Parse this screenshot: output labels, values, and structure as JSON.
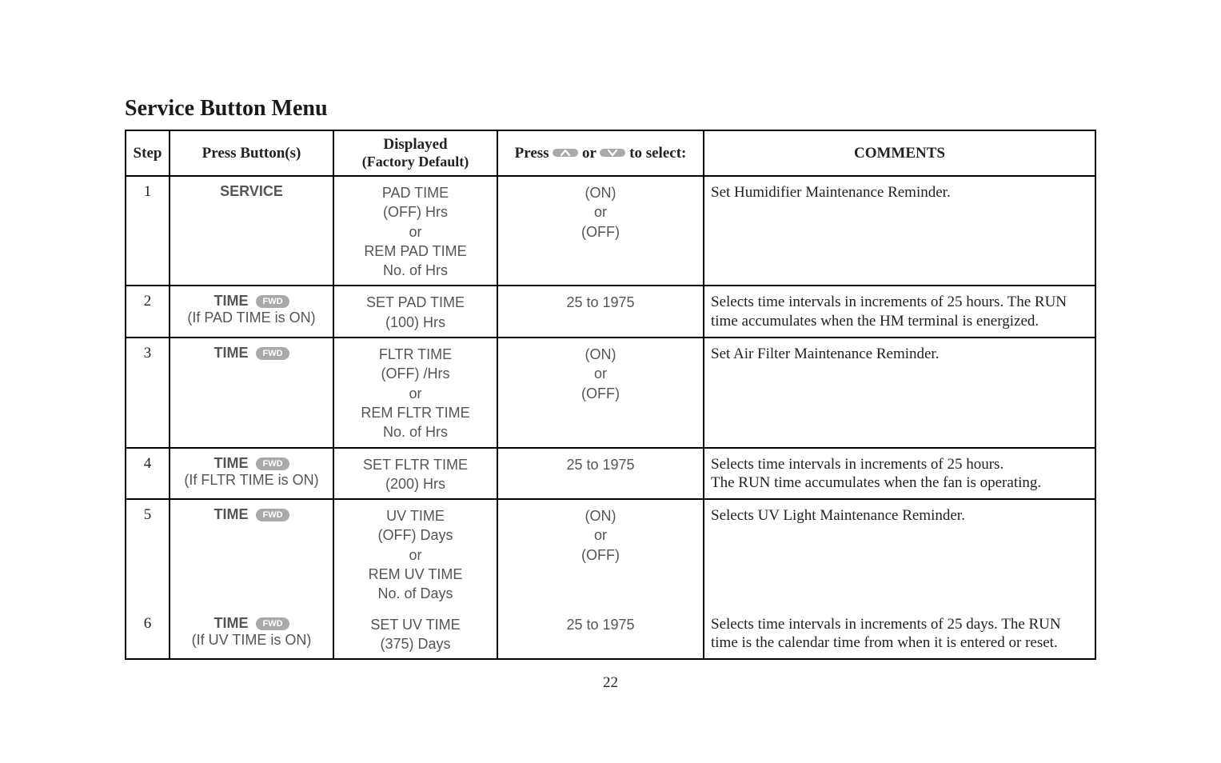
{
  "title": "Service Button Menu",
  "headers": {
    "step": "Step",
    "buttons": "Press Button(s)",
    "displayed": "Displayed",
    "displayed_sub": "(Factory Default)",
    "press_prefix": "Press",
    "press_mid": "or",
    "press_suffix": "to select:",
    "comments": "COMMENTS"
  },
  "fwd_label": "FWD",
  "rows": [
    {
      "step": "1",
      "button_main": "SERVICE",
      "button_sub": "",
      "has_fwd": false,
      "displayed": "PAD TIME\n(OFF) Hrs\nor\nREM PAD TIME\nNo. of Hrs",
      "press": "(ON)\nor\n(OFF)",
      "comments": "Set Humidifier Maintenance Reminder."
    },
    {
      "step": "2",
      "button_main": "TIME",
      "button_sub": "(If PAD TIME is ON)",
      "has_fwd": true,
      "displayed": "SET PAD TIME\n(100) Hrs",
      "press": "25 to 1975",
      "comments": "Selects time intervals in increments of 25 hours. The RUN time accumulates when the HM terminal  is energized."
    },
    {
      "step": "3",
      "button_main": "TIME",
      "button_sub": "",
      "has_fwd": true,
      "displayed": "FLTR TIME\n(OFF) /Hrs\nor\nREM FLTR TIME\nNo. of Hrs",
      "press": "(ON)\nor\n(OFF)",
      "comments": "Set Air Filter Maintenance Reminder."
    },
    {
      "step": "4",
      "button_main": "TIME",
      "button_sub": "(If FLTR TIME is ON)",
      "has_fwd": true,
      "displayed": "SET FLTR TIME\n(200) Hrs",
      "press": "25 to 1975",
      "comments": "Selects time intervals in increments of 25 hours.\nThe RUN time accumulates when the fan is operating."
    },
    {
      "step": "5",
      "button_main": "TIME",
      "button_sub": "",
      "has_fwd": true,
      "displayed": "UV TIME\n(OFF) Days\nor\nREM UV TIME\nNo. of Days",
      "press": "(ON)\nor\n(OFF)",
      "comments": "Selects UV Light Maintenance Reminder."
    },
    {
      "step": "6",
      "button_main": "TIME",
      "button_sub": "(If UV TIME is ON)",
      "has_fwd": true,
      "displayed": "SET UV TIME\n(375) Days",
      "press": "25 to 1975",
      "comments": "Selects time intervals in increments of 25 days. The RUN time is the calendar time from when it is entered or reset."
    }
  ],
  "page_number": "22",
  "styling": {
    "pill_bg": "#a9a9a9",
    "pill_fg": "#ffffff",
    "text_gray": "#555555",
    "border_color": "#000000",
    "title_fontsize": 28,
    "body_fontsize": 19,
    "sans_fontsize": 18
  }
}
